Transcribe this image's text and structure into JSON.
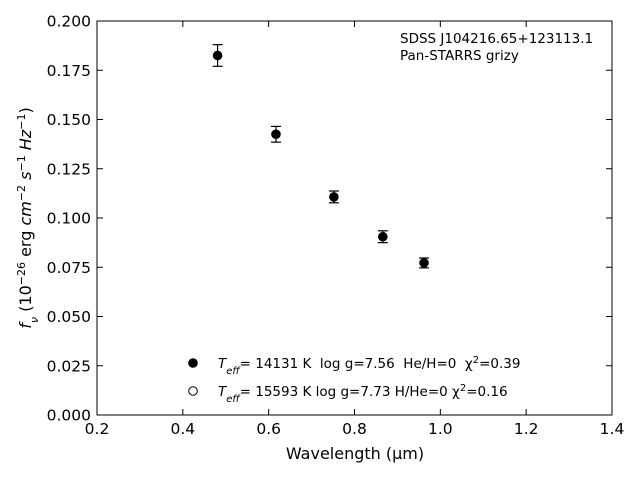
{
  "chart_data": {
    "type": "scatter",
    "xlabel": "Wavelength (μm)",
    "ylabel": "f_ν (10^-26 erg cm^-2 s^-1 Hz^-1)",
    "xlim": [
      0.2,
      1.4
    ],
    "ylim": [
      0.0,
      0.2
    ],
    "x_ticks": [
      "0.2",
      "0.4",
      "0.6",
      "0.8",
      "1.0",
      "1.2",
      "1.4"
    ],
    "y_ticks": [
      "0.000",
      "0.025",
      "0.050",
      "0.075",
      "0.100",
      "0.125",
      "0.150",
      "0.175",
      "0.200"
    ],
    "grid": false,
    "annotations": [
      "SDSS J104216.65+123113.1",
      "Pan-STARRS grizy"
    ],
    "series": [
      {
        "name": "T_eff= 14131 K  log g=7.56  He/H=0  χ²=0.39",
        "marker": "filled-circle",
        "x": [
          0.481,
          0.617,
          0.752,
          0.866,
          0.962
        ],
        "y": [
          0.1825,
          0.1425,
          0.1107,
          0.0905,
          0.0772
        ],
        "yerr": [
          0.0055,
          0.004,
          0.003,
          0.003,
          0.0025
        ]
      },
      {
        "name": "T_eff= 15593 K  log g=7.73  H/He=0  χ²=0.16",
        "marker": "open-circle",
        "x": [],
        "y": []
      }
    ],
    "legend_entries": [
      {
        "T": "T",
        "T_sub": "eff",
        "rest": "= 14131 K  log g=7.56  He/H=0  χ",
        "sup": "2",
        "end": "=0.39"
      },
      {
        "T": "T",
        "T_sub": "eff",
        "rest": "= 15593 K  log g=7.73  H/He=0  χ",
        "sup": "2",
        "end": "=0.16"
      }
    ],
    "legend_location": "lower-center",
    "colors": {
      "marker": "#000000",
      "axes": "#000000"
    }
  }
}
